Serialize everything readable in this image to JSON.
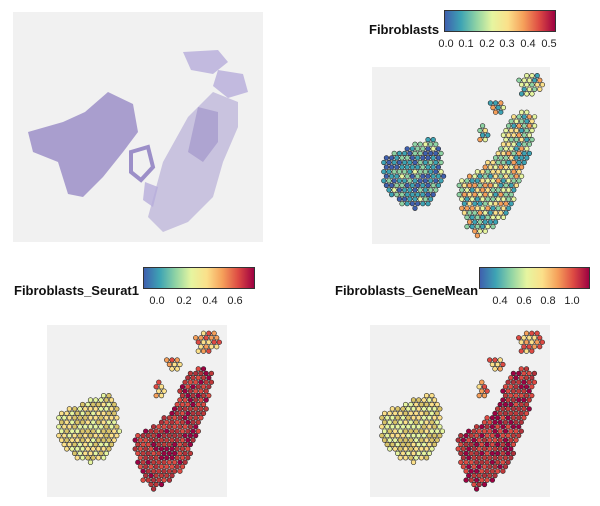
{
  "colors": {
    "spectral": [
      "#3f60ae",
      "#3da3b4",
      "#8fd3a4",
      "#e6f5a0",
      "#fbe08a",
      "#f59f5a",
      "#dd4a43",
      "#9e0142"
    ],
    "he_stain": "#9c8fc8",
    "background": "#f1f1f1"
  },
  "panels": [
    {
      "id": "he",
      "title": "",
      "ticks": []
    },
    {
      "id": "fibroblasts",
      "title": "Fibroblasts",
      "ticks": [
        "0.0",
        "0.1",
        "0.2",
        "0.3",
        "0.4",
        "0.5"
      ]
    },
    {
      "id": "seurat1",
      "title": "Fibroblasts_Seurat1",
      "ticks": [
        "0.0",
        "0.2",
        "0.4",
        "0.6"
      ]
    },
    {
      "id": "genemean",
      "title": "Fibroblasts_GeneMean",
      "ticks": [
        "0.4",
        "0.6",
        "0.8",
        "1.0"
      ]
    }
  ]
}
